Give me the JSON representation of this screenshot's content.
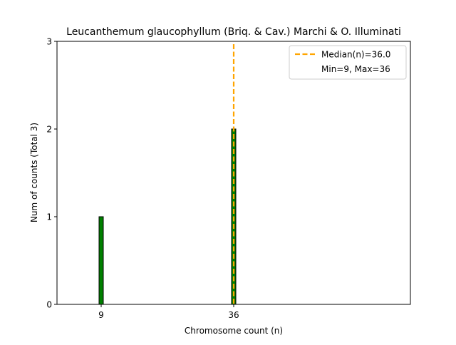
{
  "chart_data": {
    "type": "bar",
    "title": "Leucanthemum glaucophyllum (Briq. & Cav.) Marchi & O. Illuminati",
    "xlabel": "Chromosome count (n)",
    "ylabel": "Num of counts     (Total 3)",
    "xlim": [
      0,
      72
    ],
    "ylim": [
      0,
      3
    ],
    "x_ticks": [
      9,
      36
    ],
    "y_ticks": [
      0,
      1,
      2,
      3
    ],
    "bars": [
      {
        "x": 9,
        "value": 1
      },
      {
        "x": 36,
        "value": 2
      }
    ],
    "median": 36.0,
    "legend": {
      "position": "top-right",
      "entries": [
        "Median(n)=36.0",
        "Min=9, Max=36"
      ]
    },
    "colors": {
      "bar_fill": "#008000",
      "bar_edge": "#000000",
      "median_line": "#FFA500"
    },
    "grid": false
  }
}
